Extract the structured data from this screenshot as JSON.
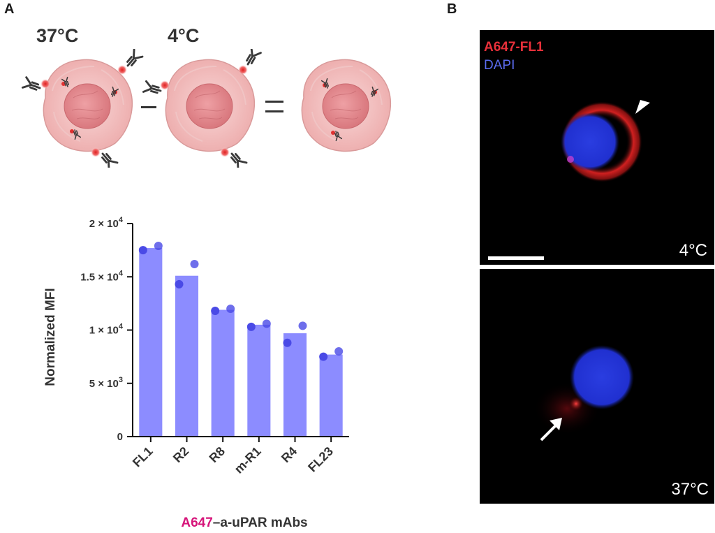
{
  "panel_a": {
    "letter": "A"
  },
  "panel_b": {
    "letter": "B"
  },
  "schematic": {
    "left_label": "37°C",
    "right_label": "4°C",
    "minus": "–",
    "equals": "="
  },
  "microscopy": {
    "legend_red": "A647-FL1",
    "legend_blue": "DAPI",
    "top_label": "4°C",
    "bottom_label": "37°C",
    "background_color": "#000000",
    "red_color": "#e8303a",
    "blue_color": "#2a3de0"
  },
  "chart_data": {
    "type": "bar",
    "categories": [
      "FL1",
      "R2",
      "R8",
      "m-R1",
      "R4",
      "FL23"
    ],
    "values": [
      17700,
      15100,
      11900,
      10500,
      9700,
      7700
    ],
    "points": [
      [
        17500,
        17900
      ],
      [
        14300,
        16200
      ],
      [
        11800,
        12000
      ],
      [
        10300,
        10600
      ],
      [
        8800,
        10400
      ],
      [
        7500,
        8000
      ]
    ],
    "ylabel": "Normalized MFI",
    "xlabel_highlight": "A647",
    "xlabel_rest": "–a-uPAR mAbs",
    "ylim": [
      0,
      20000
    ],
    "yticks": [
      {
        "value": 0,
        "base": "0",
        "exp": ""
      },
      {
        "value": 5000,
        "base": "5 × 10",
        "exp": "3"
      },
      {
        "value": 10000,
        "base": "1 × 10",
        "exp": "4"
      },
      {
        "value": 15000,
        "base": "1.5 × 10",
        "exp": "4"
      },
      {
        "value": 20000,
        "base": "2 × 10",
        "exp": "4"
      }
    ],
    "bar_color": "#8c8cff",
    "point_color": "#4a4ae6",
    "grid": false
  }
}
